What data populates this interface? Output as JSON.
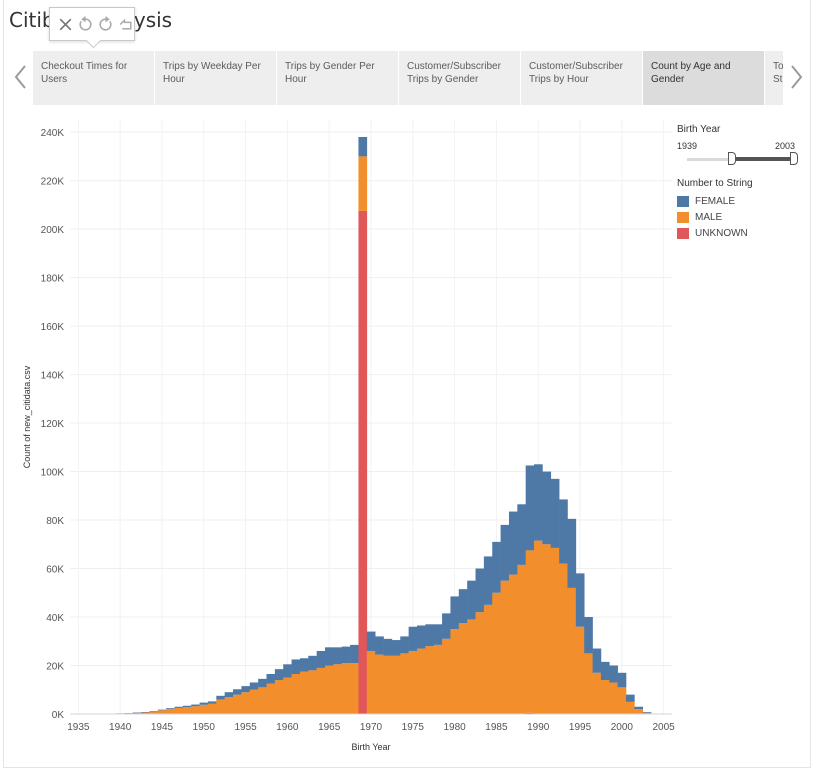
{
  "dashboard": {
    "title": "Citibike Analysis"
  },
  "tabs": [
    {
      "label": "Checkout Times for Users",
      "active": false
    },
    {
      "label": "Trips by Weekday Per Hour",
      "active": false
    },
    {
      "label": "Trips by Gender Per Hour",
      "active": false
    },
    {
      "label": "Customer/Subscriber Trips by Gender",
      "active": false
    },
    {
      "label": "Customer/Subscriber Trips by Hour",
      "active": false
    },
    {
      "label": "Count by Age and Gender",
      "active": true
    },
    {
      "label": "Top Start",
      "active": false
    }
  ],
  "toolbar": {
    "icons": [
      "close-icon",
      "undo-icon",
      "redo-icon",
      "revert-icon"
    ]
  },
  "filter": {
    "title": "Birth Year",
    "min_label": "1939",
    "max_label": "2003",
    "range_min": 1939,
    "range_max": 2003,
    "selected_min": 1939,
    "selected_max": 2003
  },
  "legend": {
    "title": "Number to String",
    "items": [
      {
        "label": "FEMALE",
        "color": "#4e79a7"
      },
      {
        "label": "MALE",
        "color": "#f28e2b"
      },
      {
        "label": "UNKNOWN",
        "color": "#e15759"
      }
    ]
  },
  "chart_data": {
    "type": "bar",
    "stacked": true,
    "xlabel": "Birth Year",
    "ylabel": "Count of new_citidata.csv",
    "xlim": [
      1934,
      2006
    ],
    "ylim": [
      0,
      245000
    ],
    "xticks": [
      1935,
      1940,
      1945,
      1950,
      1955,
      1960,
      1965,
      1970,
      1975,
      1980,
      1985,
      1990,
      1995,
      2000,
      2005
    ],
    "yticks": [
      0,
      20000,
      40000,
      60000,
      80000,
      100000,
      120000,
      140000,
      160000,
      180000,
      200000,
      220000,
      240000
    ],
    "ytick_labels": [
      "0K",
      "20K",
      "40K",
      "60K",
      "80K",
      "100K",
      "120K",
      "140K",
      "160K",
      "180K",
      "200K",
      "220K",
      "240K"
    ],
    "grid": true,
    "x": [
      1939,
      1940,
      1941,
      1942,
      1943,
      1944,
      1945,
      1946,
      1947,
      1948,
      1949,
      1950,
      1951,
      1952,
      1953,
      1954,
      1955,
      1956,
      1957,
      1958,
      1959,
      1960,
      1961,
      1962,
      1963,
      1964,
      1965,
      1966,
      1967,
      1968,
      1969,
      1970,
      1971,
      1972,
      1973,
      1974,
      1975,
      1976,
      1977,
      1978,
      1979,
      1980,
      1981,
      1982,
      1983,
      1984,
      1985,
      1986,
      1987,
      1988,
      1989,
      1990,
      1991,
      1992,
      1993,
      1994,
      1995,
      1996,
      1997,
      1998,
      1999,
      2000,
      2001,
      2002,
      2003
    ],
    "series": [
      {
        "name": "UNKNOWN",
        "values": [
          0,
          0,
          0,
          0,
          0,
          0,
          0,
          0,
          0,
          0,
          0,
          0,
          0,
          0,
          0,
          0,
          0,
          0,
          0,
          0,
          0,
          0,
          0,
          0,
          0,
          0,
          0,
          0,
          0,
          0,
          207500,
          0,
          0,
          0,
          0,
          0,
          0,
          0,
          0,
          0,
          0,
          0,
          0,
          0,
          0,
          0,
          0,
          0,
          0,
          0,
          500,
          0,
          0,
          0,
          0,
          0,
          0,
          0,
          0,
          0,
          0,
          0,
          0,
          0,
          0
        ]
      },
      {
        "name": "MALE",
        "values": [
          200,
          300,
          400,
          500,
          700,
          1000,
          1500,
          2000,
          2500,
          2800,
          3200,
          3800,
          4200,
          6000,
          7000,
          8000,
          9000,
          10000,
          11000,
          12500,
          14000,
          15000,
          16500,
          17500,
          18000,
          19000,
          20000,
          20500,
          21000,
          21000,
          22500,
          26000,
          24500,
          24000,
          24000,
          25000,
          26000,
          27000,
          28000,
          28500,
          31000,
          35000,
          37500,
          39000,
          42000,
          45000,
          50000,
          55000,
          57500,
          61500,
          67000,
          71500,
          70000,
          68500,
          62000,
          52000,
          36000,
          25000,
          17000,
          14000,
          13000,
          11000,
          5000,
          2000,
          500
        ]
      },
      {
        "name": "FEMALE",
        "values": [
          0,
          0,
          0,
          100,
          100,
          200,
          300,
          400,
          500,
          600,
          700,
          900,
          1000,
          1500,
          2000,
          2200,
          2500,
          3000,
          3500,
          4000,
          4500,
          5500,
          6000,
          5500,
          6000,
          7000,
          7500,
          7000,
          6800,
          7500,
          8000,
          8000,
          7500,
          7000,
          6500,
          7000,
          10000,
          9500,
          9000,
          8500,
          10500,
          13500,
          14000,
          16000,
          18000,
          20000,
          21000,
          23000,
          26000,
          25000,
          35000,
          31500,
          30000,
          28500,
          26500,
          28500,
          22000,
          15000,
          10000,
          7500,
          7000,
          6000,
          3000,
          1000,
          300
        ]
      }
    ]
  }
}
